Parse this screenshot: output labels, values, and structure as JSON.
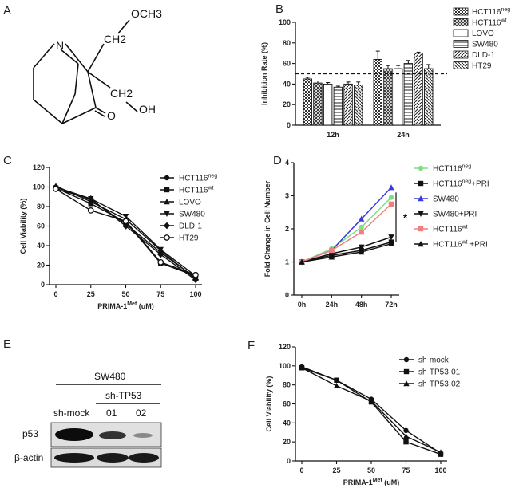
{
  "panels": {
    "A": "A",
    "B": "B",
    "C": "C",
    "D": "D",
    "E": "E",
    "F": "F"
  },
  "molecule": {
    "N": "N",
    "O": "O",
    "OCH3": "OCH3",
    "CH2_a": "CH2",
    "CH2_b": "CH2",
    "OH": "OH"
  },
  "chart_data": [
    {
      "id": "B",
      "type": "bar",
      "ylabel": "Inhibition Rate (%)",
      "xlabel": "",
      "categories": [
        "12h",
        "24h"
      ],
      "ylim": [
        0,
        100
      ],
      "yticks": [
        0,
        20,
        40,
        60,
        80,
        100
      ],
      "reference_line": 50,
      "series": [
        {
          "name": "HCT116",
          "sup": "neg",
          "values": [
            45,
            64
          ],
          "err": [
            1.5,
            8
          ]
        },
        {
          "name": "HCT116",
          "sup": "wt",
          "values": [
            41,
            55
          ],
          "err": [
            2,
            3
          ]
        },
        {
          "name": "LOVO",
          "sup": "",
          "values": [
            40,
            55
          ],
          "err": [
            1.5,
            3
          ]
        },
        {
          "name": "SW480",
          "sup": "",
          "values": [
            37,
            60
          ],
          "err": [
            1,
            3
          ]
        },
        {
          "name": "DLD-1",
          "sup": "",
          "values": [
            40,
            70
          ],
          "err": [
            2,
            1
          ]
        },
        {
          "name": "HT29",
          "sup": "",
          "values": [
            39,
            55
          ],
          "err": [
            3,
            4
          ]
        }
      ]
    },
    {
      "id": "C",
      "type": "line",
      "ylabel": "Cell Viability (%)",
      "xlabel": "PRIMA-1",
      "xlabel_sup": "Met",
      "xlabel_unit": "(uM)",
      "x": [
        0,
        25,
        50,
        75,
        100
      ],
      "xlim": [
        0,
        100
      ],
      "ylim": [
        0,
        120
      ],
      "yticks": [
        0,
        20,
        40,
        60,
        80,
        100,
        120
      ],
      "series": [
        {
          "name": "HCT116",
          "sup": "neg",
          "marker": "circle",
          "values": [
            100,
            87,
            62,
            33,
            7
          ]
        },
        {
          "name": "HCT116",
          "sup": "wt",
          "marker": "square",
          "values": [
            99,
            83,
            64,
            22,
            9
          ]
        },
        {
          "name": "LOVO",
          "sup": "",
          "marker": "triangle",
          "values": [
            101,
            85,
            67,
            35,
            6
          ]
        },
        {
          "name": "SW480",
          "sup": "",
          "marker": "triangle-down",
          "values": [
            98,
            88,
            70,
            36,
            9
          ]
        },
        {
          "name": "DLD-1",
          "sup": "",
          "marker": "diamond",
          "values": [
            100,
            88,
            60,
            31,
            5
          ]
        },
        {
          "name": "HT29",
          "sup": "",
          "marker": "open-circle",
          "values": [
            98,
            76,
            65,
            23,
            10
          ]
        }
      ]
    },
    {
      "id": "D",
      "type": "line",
      "ylabel": "Fold Change in Cell Number",
      "xlabel": "",
      "categories": [
        "0h",
        "24h",
        "48h",
        "72h"
      ],
      "ylim": [
        0,
        4
      ],
      "yticks": [
        0,
        1,
        2,
        3,
        4
      ],
      "reference_line": 1,
      "annotation": "*",
      "series": [
        {
          "name": "HCT116",
          "sup": "neg",
          "suffix": "",
          "color": "#80e080",
          "marker": "circle",
          "values": [
            1,
            1.4,
            2.05,
            2.95
          ]
        },
        {
          "name": "HCT116",
          "sup": "neg",
          "suffix": "+PRI",
          "color": "#111111",
          "marker": "square",
          "values": [
            1,
            1.2,
            1.35,
            1.6
          ]
        },
        {
          "name": "SW480",
          "sup": "",
          "suffix": "",
          "color": "#3a3ae0",
          "marker": "triangle",
          "values": [
            1,
            1.35,
            2.3,
            3.25
          ]
        },
        {
          "name": "SW480+PRI",
          "sup": "",
          "suffix": "",
          "color": "#111111",
          "marker": "triangle-down",
          "values": [
            1,
            1.25,
            1.45,
            1.75
          ]
        },
        {
          "name": "HCT116",
          "sup": "wt",
          "suffix": "",
          "color": "#f08080",
          "marker": "square",
          "values": [
            1,
            1.35,
            1.9,
            2.75
          ]
        },
        {
          "name": "HCT116",
          "sup": "wt",
          "suffix": " +PRI",
          "color": "#111111",
          "marker": "triangle",
          "values": [
            1,
            1.15,
            1.3,
            1.55
          ]
        }
      ]
    },
    {
      "id": "F",
      "type": "line",
      "ylabel": "Cell Viability (%)",
      "xlabel": "PRIMA-1",
      "xlabel_sup": "Met",
      "xlabel_unit": "(uM)",
      "x": [
        0,
        25,
        50,
        75,
        100
      ],
      "xlim": [
        0,
        100
      ],
      "ylim": [
        0,
        120
      ],
      "yticks": [
        0,
        20,
        40,
        60,
        80,
        100,
        120
      ],
      "series": [
        {
          "name": "sh-mock",
          "sup": "",
          "marker": "circle",
          "values": [
            99,
            85,
            65,
            32,
            8
          ]
        },
        {
          "name": "sh-TP53-01",
          "sup": "",
          "marker": "square",
          "values": [
            98,
            85,
            62,
            20,
            7
          ]
        },
        {
          "name": "sh-TP53-02",
          "sup": "",
          "marker": "triangle",
          "values": [
            98,
            79,
            63,
            26,
            9
          ]
        }
      ]
    }
  ],
  "western": {
    "cell_line": "SW480",
    "sh_group": "sh-TP53",
    "lanes": [
      "sh-mock",
      "01",
      "02"
    ],
    "rows": [
      "p53",
      "β-actin"
    ]
  }
}
